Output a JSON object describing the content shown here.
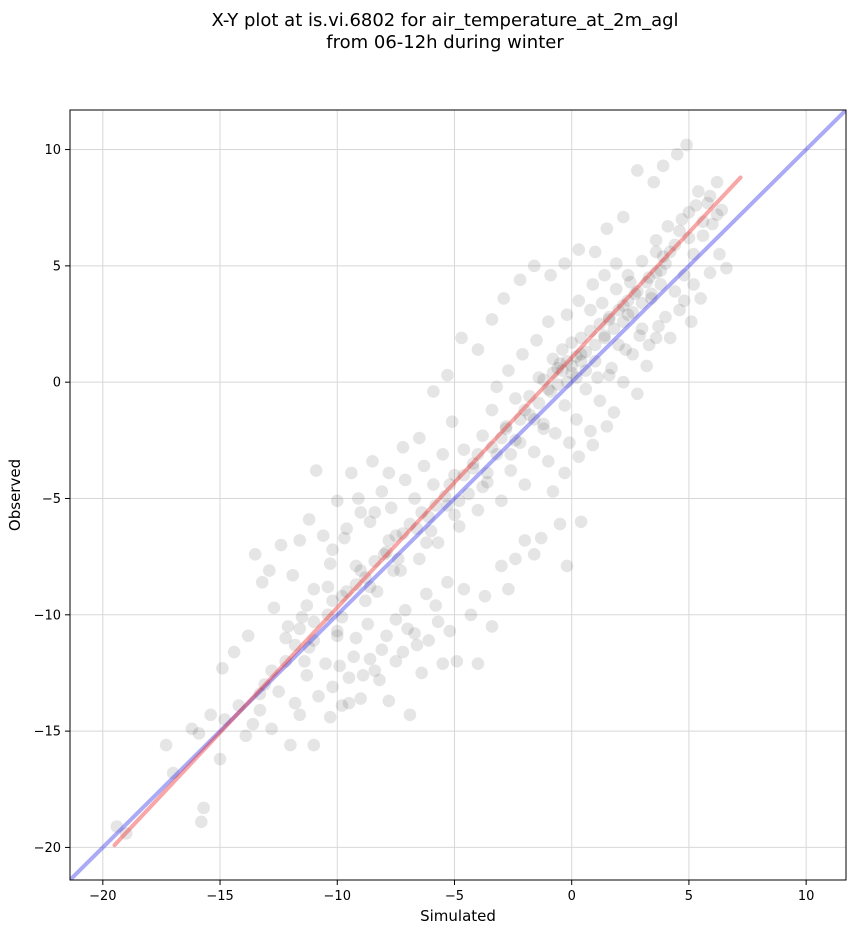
{
  "chart_data": {
    "type": "scatter",
    "title": "X-Y plot at is.vi.6802 for air_temperature_at_2m_agl",
    "subtitle": "from 06-12h during winter",
    "xlabel": "Simulated",
    "ylabel": "Observed",
    "xlim": [
      -21.4,
      11.7
    ],
    "ylim": [
      -21.4,
      11.7
    ],
    "xticks": [
      -20,
      -15,
      -10,
      -5,
      0,
      5,
      10
    ],
    "yticks": [
      -20,
      -15,
      -10,
      -5,
      0,
      5,
      10
    ],
    "xtick_labels": [
      "−20",
      "−15",
      "−10",
      "−5",
      "0",
      "5",
      "10"
    ],
    "ytick_labels": [
      "−20",
      "−15",
      "−10",
      "−5",
      "0",
      "5",
      "10"
    ],
    "grid": true,
    "point_color": "#000000",
    "point_opacity": 0.1,
    "points": [
      [
        -19.4,
        -19.1
      ],
      [
        -19.0,
        -19.4
      ],
      [
        -17.3,
        -15.6
      ],
      [
        -17.0,
        -16.8
      ],
      [
        -16.2,
        -14.9
      ],
      [
        -15.9,
        -15.1
      ],
      [
        -15.8,
        -18.9
      ],
      [
        -15.7,
        -18.3
      ],
      [
        -15.4,
        -14.3
      ],
      [
        -15.0,
        -16.2
      ],
      [
        -14.8,
        -14.5
      ],
      [
        -14.2,
        -13.9
      ],
      [
        -13.9,
        -15.2
      ],
      [
        -13.6,
        -14.7
      ],
      [
        -13.3,
        -14.1
      ],
      [
        -13.1,
        -13.0
      ],
      [
        -12.8,
        -14.9
      ],
      [
        -12.5,
        -13.3
      ],
      [
        -12.2,
        -12.0
      ],
      [
        -12.0,
        -15.6
      ],
      [
        -11.8,
        -13.8
      ],
      [
        -11.6,
        -14.3
      ],
      [
        -11.3,
        -12.6
      ],
      [
        -11.0,
        -15.6
      ],
      [
        -10.8,
        -13.5
      ],
      [
        -10.5,
        -12.1
      ],
      [
        -10.3,
        -14.4
      ],
      [
        -10.0,
        -10.9
      ],
      [
        -9.8,
        -13.9
      ],
      [
        -9.5,
        -12.7
      ],
      [
        -9.3,
        -11.8
      ],
      [
        -9.0,
        -13.6
      ],
      [
        -8.7,
        -10.4
      ],
      [
        -8.4,
        -12.4
      ],
      [
        -8.1,
        -11.5
      ],
      [
        -7.8,
        -13.7
      ],
      [
        -7.5,
        -10.2
      ],
      [
        -7.2,
        -11.6
      ],
      [
        -6.9,
        -14.3
      ],
      [
        -6.7,
        -10.8
      ],
      [
        -6.4,
        -12.5
      ],
      [
        -6.1,
        -11.1
      ],
      [
        -5.8,
        -9.6
      ],
      [
        -5.5,
        -12.1
      ],
      [
        -5.2,
        -10.7
      ],
      [
        -4.9,
        -12.0
      ],
      [
        -4.6,
        -8.9
      ],
      [
        -4.3,
        -10.0
      ],
      [
        -4.0,
        -12.1
      ],
      [
        -3.7,
        -9.2
      ],
      [
        -3.4,
        -10.5
      ],
      [
        -3.0,
        -7.9
      ],
      [
        -2.7,
        -8.9
      ],
      [
        -2.4,
        -7.6
      ],
      [
        -2.0,
        -6.8
      ],
      [
        -1.6,
        -7.4
      ],
      [
        -1.3,
        -6.7
      ],
      [
        -0.5,
        -6.1
      ],
      [
        -0.2,
        -7.9
      ],
      [
        0.4,
        -6.0
      ],
      [
        -14.9,
        -12.3
      ],
      [
        -14.4,
        -11.6
      ],
      [
        -13.8,
        -10.9
      ],
      [
        -13.5,
        -7.4
      ],
      [
        -13.2,
        -8.6
      ],
      [
        -12.9,
        -8.1
      ],
      [
        -12.7,
        -9.7
      ],
      [
        -12.4,
        -7.0
      ],
      [
        -12.1,
        -10.5
      ],
      [
        -11.9,
        -8.3
      ],
      [
        -11.6,
        -6.8
      ],
      [
        -11.3,
        -9.6
      ],
      [
        -11.2,
        -5.9
      ],
      [
        -11.0,
        -11.1
      ],
      [
        -10.9,
        -3.8
      ],
      [
        -10.6,
        -6.6
      ],
      [
        -10.4,
        -8.8
      ],
      [
        -10.2,
        -7.2
      ],
      [
        -10.0,
        -5.1
      ],
      [
        -9.8,
        -9.2
      ],
      [
        -9.6,
        -6.3
      ],
      [
        -9.4,
        -3.9
      ],
      [
        -9.2,
        -7.9
      ],
      [
        -9.0,
        -5.6
      ],
      [
        -8.8,
        -8.4
      ],
      [
        -8.6,
        -6.0
      ],
      [
        -8.5,
        -3.4
      ],
      [
        -8.3,
        -9.0
      ],
      [
        -8.1,
        -4.7
      ],
      [
        -7.9,
        -7.3
      ],
      [
        -7.7,
        -5.4
      ],
      [
        -7.5,
        -6.6
      ],
      [
        -7.3,
        -8.1
      ],
      [
        -7.1,
        -4.2
      ],
      [
        -6.9,
        -6.1
      ],
      [
        -6.7,
        -5.0
      ],
      [
        -6.5,
        -7.6
      ],
      [
        -6.3,
        -3.6
      ],
      [
        -6.1,
        -5.8
      ],
      [
        -5.9,
        -4.4
      ],
      [
        -5.7,
        -6.9
      ],
      [
        -5.5,
        -3.1
      ],
      [
        -5.3,
        -5.3
      ],
      [
        -5.1,
        -1.7
      ],
      [
        -5.0,
        -4.0
      ],
      [
        -4.8,
        -6.2
      ],
      [
        -4.6,
        -2.9
      ],
      [
        -4.4,
        -4.8
      ],
      [
        -4.2,
        -3.5
      ],
      [
        -4.0,
        -5.5
      ],
      [
        -3.8,
        -2.3
      ],
      [
        -3.6,
        -4.3
      ],
      [
        -3.4,
        -1.2
      ],
      [
        -3.2,
        -3.1
      ],
      [
        -3.0,
        -5.1
      ],
      [
        -2.8,
        -2.0
      ],
      [
        -2.6,
        -3.8
      ],
      [
        -2.4,
        -0.7
      ],
      [
        -2.2,
        -2.6
      ],
      [
        -2.0,
        -4.4
      ],
      [
        -1.8,
        -1.4
      ],
      [
        -1.6,
        -3.0
      ],
      [
        -1.4,
        0.2
      ],
      [
        -1.2,
        -1.8
      ],
      [
        -1.0,
        -3.4
      ],
      [
        -0.9,
        -0.4
      ],
      [
        -0.7,
        -2.2
      ],
      [
        -0.5,
        0.8
      ],
      [
        -0.3,
        -1.0
      ],
      [
        -0.1,
        -2.6
      ],
      [
        0.0,
        0.4
      ],
      [
        0.2,
        -1.6
      ],
      [
        0.4,
        1.2
      ],
      [
        0.6,
        -0.3
      ],
      [
        0.8,
        -2.1
      ],
      [
        1.0,
        0.9
      ],
      [
        1.2,
        -0.8
      ],
      [
        1.4,
        2.0
      ],
      [
        1.6,
        0.3
      ],
      [
        1.8,
        -1.3
      ],
      [
        2.0,
        1.6
      ],
      [
        2.2,
        0.0
      ],
      [
        2.4,
        2.9
      ],
      [
        2.6,
        1.2
      ],
      [
        2.8,
        -0.5
      ],
      [
        3.0,
        2.3
      ],
      [
        3.2,
        0.7
      ],
      [
        3.4,
        3.6
      ],
      [
        3.6,
        1.9
      ],
      [
        3.8,
        4.8
      ],
      [
        4.0,
        2.8
      ],
      [
        4.2,
        5.6
      ],
      [
        4.4,
        3.9
      ],
      [
        4.6,
        6.5
      ],
      [
        4.8,
        4.6
      ],
      [
        5.0,
        7.3
      ],
      [
        5.2,
        5.5
      ],
      [
        5.4,
        8.2
      ],
      [
        5.6,
        6.3
      ],
      [
        5.8,
        7.7
      ],
      [
        6.0,
        6.8
      ],
      [
        6.2,
        8.6
      ],
      [
        6.4,
        7.4
      ],
      [
        6.6,
        4.9
      ],
      [
        4.9,
        10.2
      ],
      [
        4.5,
        9.8
      ],
      [
        3.9,
        9.3
      ],
      [
        3.5,
        8.6
      ],
      [
        2.8,
        9.1
      ],
      [
        2.2,
        7.1
      ],
      [
        1.5,
        6.6
      ],
      [
        1.0,
        5.6
      ],
      [
        0.3,
        5.7
      ],
      [
        -0.3,
        5.1
      ],
      [
        -0.9,
        4.6
      ],
      [
        -1.6,
        5.0
      ],
      [
        -2.2,
        4.4
      ],
      [
        -2.9,
        3.6
      ],
      [
        -3.4,
        2.7
      ],
      [
        -4.0,
        1.4
      ],
      [
        -4.7,
        1.9
      ],
      [
        -5.3,
        0.3
      ],
      [
        -5.9,
        -0.4
      ],
      [
        -6.5,
        -2.4
      ],
      [
        -7.2,
        -2.8
      ],
      [
        -7.8,
        -3.9
      ],
      [
        -8.4,
        -5.6
      ],
      [
        -9.1,
        -5.0
      ],
      [
        -9.7,
        -6.7
      ],
      [
        -10.3,
        -7.8
      ],
      [
        -11.0,
        -8.9
      ],
      [
        -11.5,
        -10.1
      ],
      [
        -12.2,
        -11.0
      ],
      [
        -12.8,
        -12.4
      ],
      [
        -13.3,
        -13.4
      ],
      [
        -0.8,
        1.0
      ],
      [
        -0.6,
        0.6
      ],
      [
        -0.4,
        1.4
      ],
      [
        -0.2,
        0.9
      ],
      [
        0.0,
        1.7
      ],
      [
        0.2,
        1.1
      ],
      [
        0.4,
        1.9
      ],
      [
        0.6,
        1.3
      ],
      [
        0.8,
        2.2
      ],
      [
        1.0,
        1.6
      ],
      [
        1.2,
        2.5
      ],
      [
        1.4,
        1.9
      ],
      [
        1.6,
        2.8
      ],
      [
        1.8,
        2.3
      ],
      [
        2.0,
        3.1
      ],
      [
        2.2,
        2.6
      ],
      [
        2.4,
        3.5
      ],
      [
        2.6,
        3.0
      ],
      [
        2.8,
        3.9
      ],
      [
        3.0,
        3.4
      ],
      [
        3.2,
        4.3
      ],
      [
        3.4,
        3.8
      ],
      [
        3.6,
        4.7
      ],
      [
        3.8,
        4.2
      ],
      [
        4.0,
        5.1
      ],
      [
        -1.2,
        0.1
      ],
      [
        -1.0,
        -0.3
      ],
      [
        -0.8,
        0.4
      ],
      [
        -0.6,
        -0.1
      ],
      [
        -0.4,
        0.5
      ],
      [
        -0.2,
        0.0
      ],
      [
        0.0,
        0.7
      ],
      [
        0.2,
        0.2
      ],
      [
        0.4,
        0.9
      ],
      [
        0.6,
        0.5
      ],
      [
        -2.0,
        -1.2
      ],
      [
        -1.8,
        -0.6
      ],
      [
        -1.6,
        -1.6
      ],
      [
        -1.4,
        -0.9
      ],
      [
        -1.2,
        -2.0
      ],
      [
        -3.0,
        -2.4
      ],
      [
        -2.8,
        -1.9
      ],
      [
        -2.6,
        -3.1
      ],
      [
        -2.4,
        -2.5
      ],
      [
        -2.2,
        -1.6
      ],
      [
        -4.2,
        -3.7
      ],
      [
        -4.0,
        -3.1
      ],
      [
        -3.8,
        -4.5
      ],
      [
        -3.6,
        -3.9
      ],
      [
        -3.4,
        -2.8
      ],
      [
        -5.4,
        -4.9
      ],
      [
        -5.2,
        -4.4
      ],
      [
        -5.0,
        -5.7
      ],
      [
        -4.8,
        -5.1
      ],
      [
        -4.6,
        -4.0
      ],
      [
        -6.6,
        -6.3
      ],
      [
        -6.4,
        -5.6
      ],
      [
        -6.2,
        -6.9
      ],
      [
        -6.0,
        -6.4
      ],
      [
        -5.8,
        -5.3
      ],
      [
        -8.0,
        -7.4
      ],
      [
        -7.8,
        -6.8
      ],
      [
        -7.6,
        -8.1
      ],
      [
        -7.4,
        -7.6
      ],
      [
        -7.2,
        -6.5
      ],
      [
        -9.2,
        -8.7
      ],
      [
        -9.0,
        -8.1
      ],
      [
        -8.8,
        -9.4
      ],
      [
        -8.6,
        -8.8
      ],
      [
        -8.4,
        -7.7
      ],
      [
        -10.4,
        -10.0
      ],
      [
        -10.2,
        -9.4
      ],
      [
        -10.0,
        -10.7
      ],
      [
        -9.8,
        -10.1
      ],
      [
        -9.6,
        -9.0
      ],
      [
        -11.8,
        -11.3
      ],
      [
        -11.6,
        -10.6
      ],
      [
        -11.4,
        -12.0
      ],
      [
        -11.2,
        -11.4
      ],
      [
        -11.0,
        -10.3
      ],
      [
        3.6,
        6.1
      ],
      [
        3.9,
        5.4
      ],
      [
        4.1,
        6.7
      ],
      [
        4.4,
        5.9
      ],
      [
        4.7,
        7.0
      ],
      [
        5.0,
        6.2
      ],
      [
        5.3,
        7.6
      ],
      [
        5.6,
        6.9
      ],
      [
        5.9,
        8.0
      ],
      [
        6.2,
        7.2
      ],
      [
        2.4,
        4.6
      ],
      [
        2.7,
        3.8
      ],
      [
        3.0,
        5.2
      ],
      [
        3.3,
        4.5
      ],
      [
        3.6,
        5.6
      ],
      [
        1.3,
        3.4
      ],
      [
        1.6,
        2.7
      ],
      [
        1.9,
        4.0
      ],
      [
        2.2,
        3.3
      ],
      [
        2.5,
        4.3
      ],
      [
        0.8,
        3.1
      ],
      [
        1.1,
        0.2
      ],
      [
        1.7,
        0.6
      ],
      [
        2.3,
        1.4
      ],
      [
        2.9,
        2.0
      ],
      [
        -0.2,
        2.9
      ],
      [
        0.3,
        3.5
      ],
      [
        0.9,
        4.2
      ],
      [
        1.4,
        4.6
      ],
      [
        1.9,
        5.1
      ],
      [
        -3.2,
        -0.2
      ],
      [
        -2.7,
        0.5
      ],
      [
        -2.1,
        1.2
      ],
      [
        -1.5,
        1.8
      ],
      [
        -1.0,
        2.6
      ],
      [
        -0.8,
        -4.7
      ],
      [
        -0.3,
        -3.9
      ],
      [
        0.3,
        -3.2
      ],
      [
        0.9,
        -2.7
      ],
      [
        1.5,
        -1.9
      ],
      [
        5.1,
        2.6
      ],
      [
        4.6,
        3.1
      ],
      [
        4.2,
        1.9
      ],
      [
        3.7,
        2.4
      ],
      [
        3.3,
        1.6
      ],
      [
        6.3,
        5.5
      ],
      [
        5.9,
        4.7
      ],
      [
        5.5,
        3.6
      ],
      [
        5.2,
        4.2
      ],
      [
        4.8,
        3.5
      ],
      [
        -7.0,
        -10.6
      ],
      [
        -6.6,
        -11.3
      ],
      [
        -6.2,
        -9.1
      ],
      [
        -5.7,
        -10.3
      ],
      [
        -5.3,
        -8.6
      ],
      [
        -8.6,
        -11.9
      ],
      [
        -8.2,
        -12.8
      ],
      [
        -7.9,
        -10.9
      ],
      [
        -7.5,
        -12.0
      ],
      [
        -7.1,
        -9.8
      ],
      [
        -10.2,
        -13.1
      ],
      [
        -9.9,
        -12.2
      ],
      [
        -9.5,
        -13.8
      ],
      [
        -9.2,
        -11.0
      ],
      [
        -8.9,
        -12.6
      ]
    ],
    "fit_line": {
      "color": "#ef2b2b",
      "opacity": 0.42,
      "x": [
        -19.5,
        7.2
      ],
      "y": [
        -19.9,
        8.8
      ]
    },
    "identity_line": {
      "color": "#1f1fe8",
      "opacity": 0.38,
      "x": [
        -21.4,
        11.7
      ],
      "y": [
        -21.4,
        11.7
      ]
    }
  }
}
